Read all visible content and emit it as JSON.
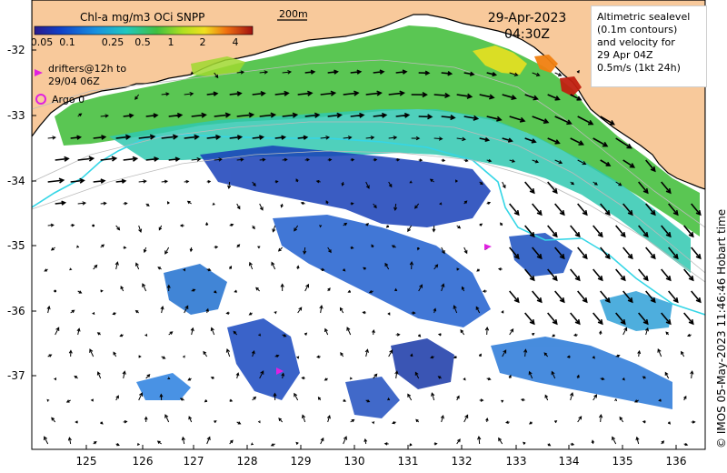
{
  "colorbar": {
    "title": "Chl-a mg/m3 OCi SNPP",
    "ticks": [
      "0.05",
      "0.1",
      "0.25",
      "0.5",
      "1",
      "2",
      "4"
    ]
  },
  "date": "29-Apr-2023",
  "time": "04:30Z",
  "scale_label": "200m",
  "legend": {
    "drifters_line1": "drifters@12h to",
    "drifters_line2": "29/04 06Z",
    "argo": "Argo 0"
  },
  "altimetry": {
    "line1": "Altimetric sealevel",
    "line2": "(0.1m contours)",
    "line3": "and velocity for",
    "line4": "29 Apr 04Z",
    "line5": "0.5m/s (1kt 24h)"
  },
  "axes": {
    "longitude_ticks": [
      "125",
      "126",
      "127",
      "128",
      "129",
      "130",
      "131",
      "132",
      "133",
      "134",
      "135",
      "136"
    ],
    "latitude_ticks": [
      "-32",
      "-33",
      "-34",
      "-35",
      "-36",
      "-37"
    ]
  },
  "credit": "© IMOS 05-May-2023 11:46:46 Hobart time",
  "colors": {
    "land": "#f8c99b",
    "ocean": "#ffffff",
    "contour_200m": "#35d6e6",
    "drifter_marker": "#e020e0",
    "chl_low": "#1030a0",
    "chl_mid": "#20c0a0",
    "chl_high": "#e02000"
  }
}
